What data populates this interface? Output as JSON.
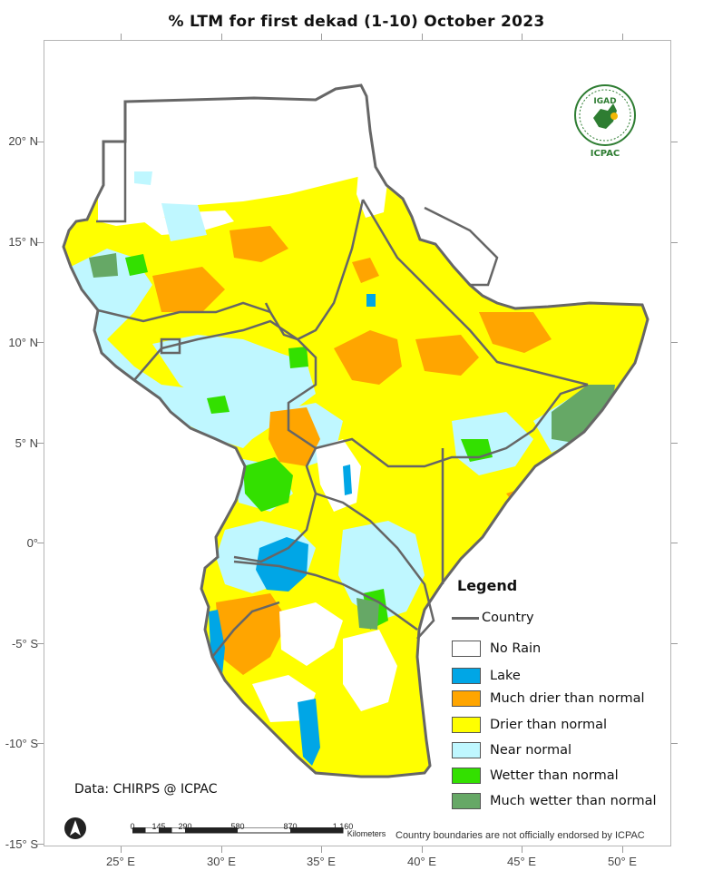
{
  "title": "% LTM    for  first dekad (1-10)   October 2023",
  "axes": {
    "y_ticks": [
      "20° N",
      "15° N",
      "10° N",
      "5° N",
      "0°",
      "-5° S",
      "-10° S",
      "-15° S"
    ],
    "x_ticks": [
      "25° E",
      "30° E",
      "35° E",
      "40° E",
      "45° E",
      "50° E"
    ]
  },
  "legend": {
    "title": "Legend",
    "country": "Country",
    "items": [
      {
        "label": "No Rain",
        "color": "#ffffff"
      },
      {
        "label": "Lake",
        "color": "#00a6e6"
      },
      {
        "label": "Much drier than normal",
        "color": "#ffa500"
      },
      {
        "label": "Drier than normal",
        "color": "#ffff00"
      },
      {
        "label": "Near normal",
        "color": "#bff7ff"
      },
      {
        "label": "Wetter than normal",
        "color": "#33e000"
      },
      {
        "label": "Much wetter than normal",
        "color": "#66a866"
      }
    ]
  },
  "source": "Data: CHIRPS @ ICPAC",
  "disclaimer": "Country boundaries are not officially endorsed by ICPAC",
  "scale": {
    "labels": [
      "0",
      "145",
      "290",
      "580",
      "870",
      "1,160"
    ],
    "unit": "Kilometers"
  },
  "logo": {
    "top_text": "IGAD",
    "bottom_text": "ICPAC"
  },
  "icons": {
    "north_arrow": "north-arrow-icon",
    "logo": "igad-logo-icon"
  }
}
